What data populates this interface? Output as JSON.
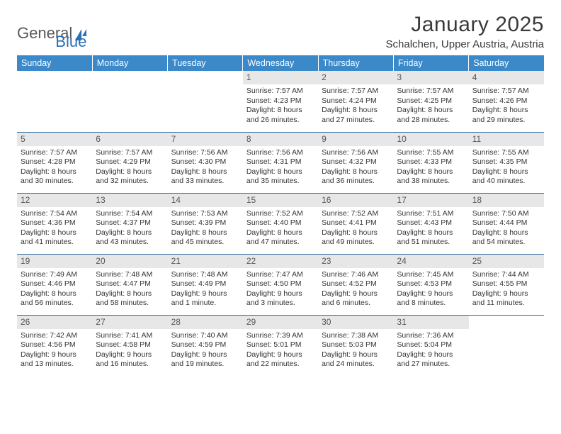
{
  "logo": {
    "text_a": "General",
    "text_b": "Blue"
  },
  "title": "January 2025",
  "location": "Schalchen, Upper Austria, Austria",
  "colors": {
    "header_bg": "#3b89c9",
    "header_text": "#ffffff",
    "date_bar_bg": "#e7e7e7",
    "row_divider": "#2f6aa3",
    "body_text": "#333333"
  },
  "weekdays": [
    "Sunday",
    "Monday",
    "Tuesday",
    "Wednesday",
    "Thursday",
    "Friday",
    "Saturday"
  ],
  "weeks": [
    [
      null,
      null,
      null,
      {
        "d": "1",
        "sr": "7:57 AM",
        "ss": "4:23 PM",
        "dl": "8 hours and 26 minutes."
      },
      {
        "d": "2",
        "sr": "7:57 AM",
        "ss": "4:24 PM",
        "dl": "8 hours and 27 minutes."
      },
      {
        "d": "3",
        "sr": "7:57 AM",
        "ss": "4:25 PM",
        "dl": "8 hours and 28 minutes."
      },
      {
        "d": "4",
        "sr": "7:57 AM",
        "ss": "4:26 PM",
        "dl": "8 hours and 29 minutes."
      }
    ],
    [
      {
        "d": "5",
        "sr": "7:57 AM",
        "ss": "4:28 PM",
        "dl": "8 hours and 30 minutes."
      },
      {
        "d": "6",
        "sr": "7:57 AM",
        "ss": "4:29 PM",
        "dl": "8 hours and 32 minutes."
      },
      {
        "d": "7",
        "sr": "7:56 AM",
        "ss": "4:30 PM",
        "dl": "8 hours and 33 minutes."
      },
      {
        "d": "8",
        "sr": "7:56 AM",
        "ss": "4:31 PM",
        "dl": "8 hours and 35 minutes."
      },
      {
        "d": "9",
        "sr": "7:56 AM",
        "ss": "4:32 PM",
        "dl": "8 hours and 36 minutes."
      },
      {
        "d": "10",
        "sr": "7:55 AM",
        "ss": "4:33 PM",
        "dl": "8 hours and 38 minutes."
      },
      {
        "d": "11",
        "sr": "7:55 AM",
        "ss": "4:35 PM",
        "dl": "8 hours and 40 minutes."
      }
    ],
    [
      {
        "d": "12",
        "sr": "7:54 AM",
        "ss": "4:36 PM",
        "dl": "8 hours and 41 minutes."
      },
      {
        "d": "13",
        "sr": "7:54 AM",
        "ss": "4:37 PM",
        "dl": "8 hours and 43 minutes."
      },
      {
        "d": "14",
        "sr": "7:53 AM",
        "ss": "4:39 PM",
        "dl": "8 hours and 45 minutes."
      },
      {
        "d": "15",
        "sr": "7:52 AM",
        "ss": "4:40 PM",
        "dl": "8 hours and 47 minutes."
      },
      {
        "d": "16",
        "sr": "7:52 AM",
        "ss": "4:41 PM",
        "dl": "8 hours and 49 minutes."
      },
      {
        "d": "17",
        "sr": "7:51 AM",
        "ss": "4:43 PM",
        "dl": "8 hours and 51 minutes."
      },
      {
        "d": "18",
        "sr": "7:50 AM",
        "ss": "4:44 PM",
        "dl": "8 hours and 54 minutes."
      }
    ],
    [
      {
        "d": "19",
        "sr": "7:49 AM",
        "ss": "4:46 PM",
        "dl": "8 hours and 56 minutes."
      },
      {
        "d": "20",
        "sr": "7:48 AM",
        "ss": "4:47 PM",
        "dl": "8 hours and 58 minutes."
      },
      {
        "d": "21",
        "sr": "7:48 AM",
        "ss": "4:49 PM",
        "dl": "9 hours and 1 minute."
      },
      {
        "d": "22",
        "sr": "7:47 AM",
        "ss": "4:50 PM",
        "dl": "9 hours and 3 minutes."
      },
      {
        "d": "23",
        "sr": "7:46 AM",
        "ss": "4:52 PM",
        "dl": "9 hours and 6 minutes."
      },
      {
        "d": "24",
        "sr": "7:45 AM",
        "ss": "4:53 PM",
        "dl": "9 hours and 8 minutes."
      },
      {
        "d": "25",
        "sr": "7:44 AM",
        "ss": "4:55 PM",
        "dl": "9 hours and 11 minutes."
      }
    ],
    [
      {
        "d": "26",
        "sr": "7:42 AM",
        "ss": "4:56 PM",
        "dl": "9 hours and 13 minutes."
      },
      {
        "d": "27",
        "sr": "7:41 AM",
        "ss": "4:58 PM",
        "dl": "9 hours and 16 minutes."
      },
      {
        "d": "28",
        "sr": "7:40 AM",
        "ss": "4:59 PM",
        "dl": "9 hours and 19 minutes."
      },
      {
        "d": "29",
        "sr": "7:39 AM",
        "ss": "5:01 PM",
        "dl": "9 hours and 22 minutes."
      },
      {
        "d": "30",
        "sr": "7:38 AM",
        "ss": "5:03 PM",
        "dl": "9 hours and 24 minutes."
      },
      {
        "d": "31",
        "sr": "7:36 AM",
        "ss": "5:04 PM",
        "dl": "9 hours and 27 minutes."
      },
      null
    ]
  ],
  "labels": {
    "sunrise": "Sunrise:",
    "sunset": "Sunset:",
    "daylight": "Daylight:"
  }
}
